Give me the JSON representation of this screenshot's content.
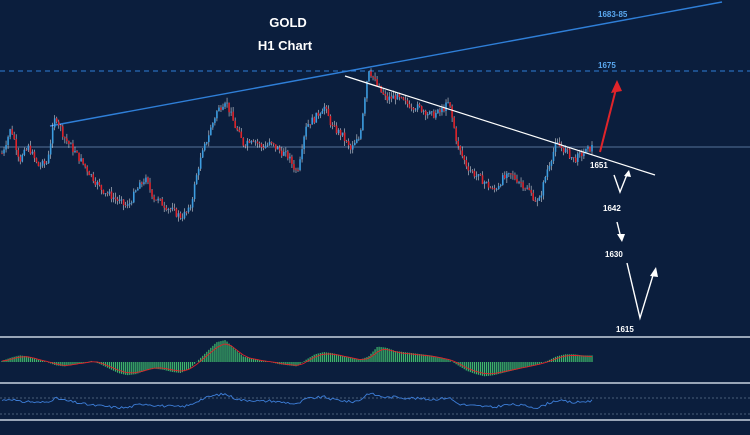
{
  "colors": {
    "background": "#0b1e3d",
    "bull": "#3d9de0",
    "bear": "#e0242a",
    "wick": "#ffffff",
    "channel_line": "#2f7fd8",
    "trendline": "#ffffff",
    "level_label": "#5aa8f0",
    "forecast_up": "#e0242a",
    "forecast": "#ffffff",
    "histogram": "#3fb86a",
    "signal": "#e0242a",
    "rsi": "#3d7ed8"
  },
  "chart_data": {
    "type": "candlestick",
    "instrument": "GOLD",
    "timeframe": "H1 Chart",
    "title": "GOLD",
    "subtitle": "H1 Chart",
    "grid": false,
    "levels": [
      {
        "label": "1683-85",
        "value": 1684,
        "style": "rising-line"
      },
      {
        "label": "1675",
        "value": 1675,
        "style": "dashed"
      },
      {
        "label": "1651",
        "value": 1651,
        "style": "price-line"
      }
    ],
    "forecast_labels": [
      "1651",
      "1642",
      "1630",
      "1615"
    ],
    "path": [
      1649,
      1657,
      1647,
      1651,
      1645,
      1646,
      1661,
      1654,
      1650,
      1646,
      1642,
      1638,
      1636,
      1634,
      1632,
      1637,
      1641,
      1635,
      1633,
      1631,
      1629,
      1631,
      1645,
      1654,
      1662,
      1666,
      1658,
      1652,
      1654,
      1651,
      1652,
      1650,
      1648,
      1643,
      1658,
      1660,
      1664,
      1657,
      1655,
      1650,
      1654,
      1676,
      1670,
      1666,
      1667,
      1665,
      1664,
      1663,
      1661,
      1662,
      1665,
      1651,
      1645,
      1642,
      1640,
      1637,
      1641,
      1642,
      1640,
      1637,
      1633,
      1644,
      1652,
      1650,
      1647,
      1649,
      1651
    ],
    "indicators": {
      "oscillator_histogram": [
        0.05,
        0.2,
        0.3,
        0.25,
        0.1,
        0,
        -0.15,
        -0.2,
        -0.1,
        -0.05,
        0.05,
        -0.1,
        -0.3,
        -0.5,
        -0.6,
        -0.55,
        -0.4,
        -0.3,
        -0.35,
        -0.45,
        -0.5,
        -0.3,
        0.1,
        0.5,
        0.9,
        1.0,
        0.6,
        0.25,
        0.15,
        0.05,
        0,
        -0.1,
        -0.15,
        -0.2,
        0.1,
        0.35,
        0.45,
        0.4,
        0.3,
        0.2,
        0.1,
        0.25,
        0.7,
        0.65,
        0.5,
        0.45,
        0.4,
        0.35,
        0.3,
        0.2,
        0.1,
        -0.15,
        -0.4,
        -0.55,
        -0.65,
        -0.6,
        -0.5,
        -0.4,
        -0.3,
        -0.2,
        -0.1,
        0.05,
        0.25,
        0.35,
        0.35,
        0.3,
        0.3
      ],
      "rsi": [
        55,
        60,
        50,
        52,
        48,
        50,
        62,
        55,
        50,
        45,
        40,
        38,
        35,
        33,
        32,
        40,
        45,
        40,
        38,
        36,
        35,
        40,
        55,
        65,
        72,
        75,
        62,
        55,
        56,
        52,
        54,
        50,
        48,
        42,
        60,
        63,
        66,
        58,
        55,
        50,
        55,
        78,
        70,
        64,
        66,
        63,
        62,
        60,
        58,
        60,
        64,
        45,
        40,
        38,
        36,
        33,
        40,
        42,
        40,
        36,
        32,
        45,
        55,
        52,
        48,
        51,
        54
      ]
    }
  }
}
